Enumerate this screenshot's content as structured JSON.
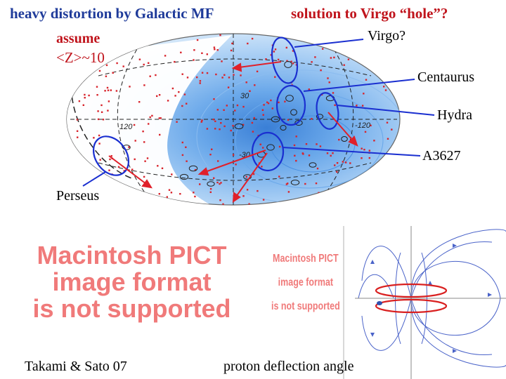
{
  "title": {
    "left": "heavy distortion by Galactic MF",
    "right": "solution to Virgo “hole”?"
  },
  "assume": {
    "line1": "assume",
    "line2": "<Z>~10"
  },
  "skymap": {
    "grid_labels": [
      "30",
      "120",
      "-120",
      "-30"
    ],
    "clusters": [
      "Virgo?",
      "Centaurus",
      "Hydra",
      "A3627",
      "Perseus"
    ]
  },
  "placeholder_big": {
    "line1": "Macintosh PICT",
    "line2": "image format",
    "line3": "is not supported"
  },
  "placeholder_small": {
    "line1": "Macintosh PICT",
    "line2": "image format",
    "line3": "is not supported"
  },
  "captions": {
    "reference": "Takami & Sato 07",
    "deflection": "proton deflection angle"
  },
  "colors": {
    "title_red": "#c0141c",
    "arrow_blue": "#1a2fd0",
    "arrow_red": "#e0202a",
    "sky_blue": "#3f8fe0"
  }
}
